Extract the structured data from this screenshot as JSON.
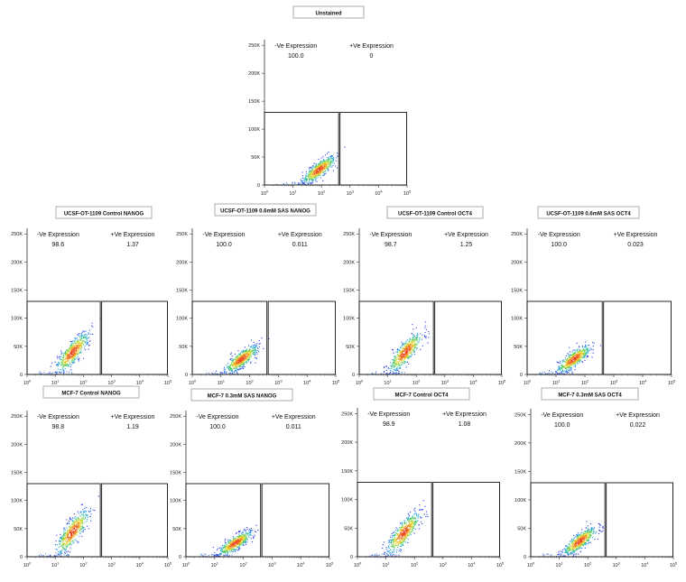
{
  "figure": {
    "y_ticks": [
      "0",
      "50K",
      "100K",
      "150K",
      "200K",
      "250K"
    ],
    "x_ticks": [
      "0",
      "1",
      "2",
      "3",
      "4",
      "5"
    ],
    "x_base": "10"
  },
  "chart_data": [
    {
      "type": "scatter",
      "id": "unstained",
      "title": "Unstained",
      "gate_neg_label": "-Ve Expression",
      "gate_neg_value": "100.0",
      "gate_pos_label": "+Ve Expression",
      "gate_pos_value": "0",
      "ylim": [
        0,
        260000
      ],
      "xlim_log10": [
        0,
        5
      ],
      "gate_threshold_log10": 2.6,
      "gate_upper_y": 130000,
      "population_center": {
        "x_log10": 1.9,
        "y": 28000
      }
    },
    {
      "type": "scatter",
      "id": "ot1109-control-nanog",
      "title": "UCSF-OT-1109 Control NANOG",
      "gate_neg_label": "-Ve Expression",
      "gate_neg_value": "98.6",
      "gate_pos_label": "+Ve Expression",
      "gate_pos_value": "1.37",
      "ylim": [
        0,
        260000
      ],
      "xlim_log10": [
        0,
        5
      ],
      "gate_threshold_log10": 2.6,
      "gate_upper_y": 130000,
      "population_center": {
        "x_log10": 1.6,
        "y": 40000
      }
    },
    {
      "type": "scatter",
      "id": "ot1109-sas-nanog",
      "title": "UCSF-OT-1109  0.6mM SAS NANOG",
      "gate_neg_label": "-Ve Expression",
      "gate_neg_value": "100.0",
      "gate_pos_label": "+Ve Expression",
      "gate_pos_value": "0.011",
      "ylim": [
        0,
        260000
      ],
      "xlim_log10": [
        0,
        5
      ],
      "gate_threshold_log10": 2.6,
      "gate_upper_y": 130000,
      "population_center": {
        "x_log10": 1.7,
        "y": 28000
      }
    },
    {
      "type": "scatter",
      "id": "ot1109-control-oct4",
      "title": "UCSF-OT-1109 Control OCT4",
      "gate_neg_label": "-Ve Expression",
      "gate_neg_value": "98.7",
      "gate_pos_label": "+Ve Expression",
      "gate_pos_value": "1.25",
      "ylim": [
        0,
        260000
      ],
      "xlim_log10": [
        0,
        5
      ],
      "gate_threshold_log10": 2.6,
      "gate_upper_y": 130000,
      "population_center": {
        "x_log10": 1.6,
        "y": 40000
      }
    },
    {
      "type": "scatter",
      "id": "ot1109-sas-oct4",
      "title": "UCSF-OT-1109 0.6mM SAS OCT4",
      "gate_neg_label": "-Ve Expression",
      "gate_neg_value": "100.0",
      "gate_pos_label": "+Ve Expression",
      "gate_pos_value": "0.023",
      "ylim": [
        0,
        260000
      ],
      "xlim_log10": [
        0,
        5
      ],
      "gate_threshold_log10": 2.6,
      "gate_upper_y": 130000,
      "population_center": {
        "x_log10": 1.6,
        "y": 28000
      }
    },
    {
      "type": "scatter",
      "id": "mcf7-control-nanog",
      "title": "MCF-7 Control NANOG",
      "gate_neg_label": "-Ve Expression",
      "gate_neg_value": "98.8",
      "gate_pos_label": "+Ve Expression",
      "gate_pos_value": "1.19",
      "ylim": [
        0,
        260000
      ],
      "xlim_log10": [
        0,
        5
      ],
      "gate_threshold_log10": 2.6,
      "gate_upper_y": 130000,
      "population_center": {
        "x_log10": 1.6,
        "y": 45000
      }
    },
    {
      "type": "scatter",
      "id": "mcf7-sas-nanog",
      "title": "MCF-7 0.3mM SAS NANOG",
      "gate_neg_label": "-Ve Expression",
      "gate_neg_value": "100.0",
      "gate_pos_label": "+Ve Expression",
      "gate_pos_value": "0.011",
      "ylim": [
        0,
        260000
      ],
      "xlim_log10": [
        0,
        5
      ],
      "gate_threshold_log10": 2.6,
      "gate_upper_y": 130000,
      "population_center": {
        "x_log10": 1.7,
        "y": 25000
      }
    },
    {
      "type": "scatter",
      "id": "mcf7-control-oct4",
      "title": "MCF-7 Control OCT4",
      "gate_neg_label": "-Ve Expression",
      "gate_neg_value": "98.9",
      "gate_pos_label": "+Ve Expression",
      "gate_pos_value": "1.08",
      "ylim": [
        0,
        260000
      ],
      "xlim_log10": [
        0,
        5
      ],
      "gate_threshold_log10": 2.6,
      "gate_upper_y": 130000,
      "population_center": {
        "x_log10": 1.6,
        "y": 42000
      }
    },
    {
      "type": "scatter",
      "id": "mcf7-sas-oct4",
      "title": "MCF-7 0.3mM SAS OCT4",
      "gate_neg_label": "-Ve Expression",
      "gate_neg_value": "100.0",
      "gate_pos_label": "+Ve Expression",
      "gate_pos_value": "0.022",
      "ylim": [
        0,
        260000
      ],
      "xlim_log10": [
        0,
        5
      ],
      "gate_threshold_log10": 2.6,
      "gate_upper_y": 130000,
      "population_center": {
        "x_log10": 1.7,
        "y": 28000
      }
    }
  ]
}
